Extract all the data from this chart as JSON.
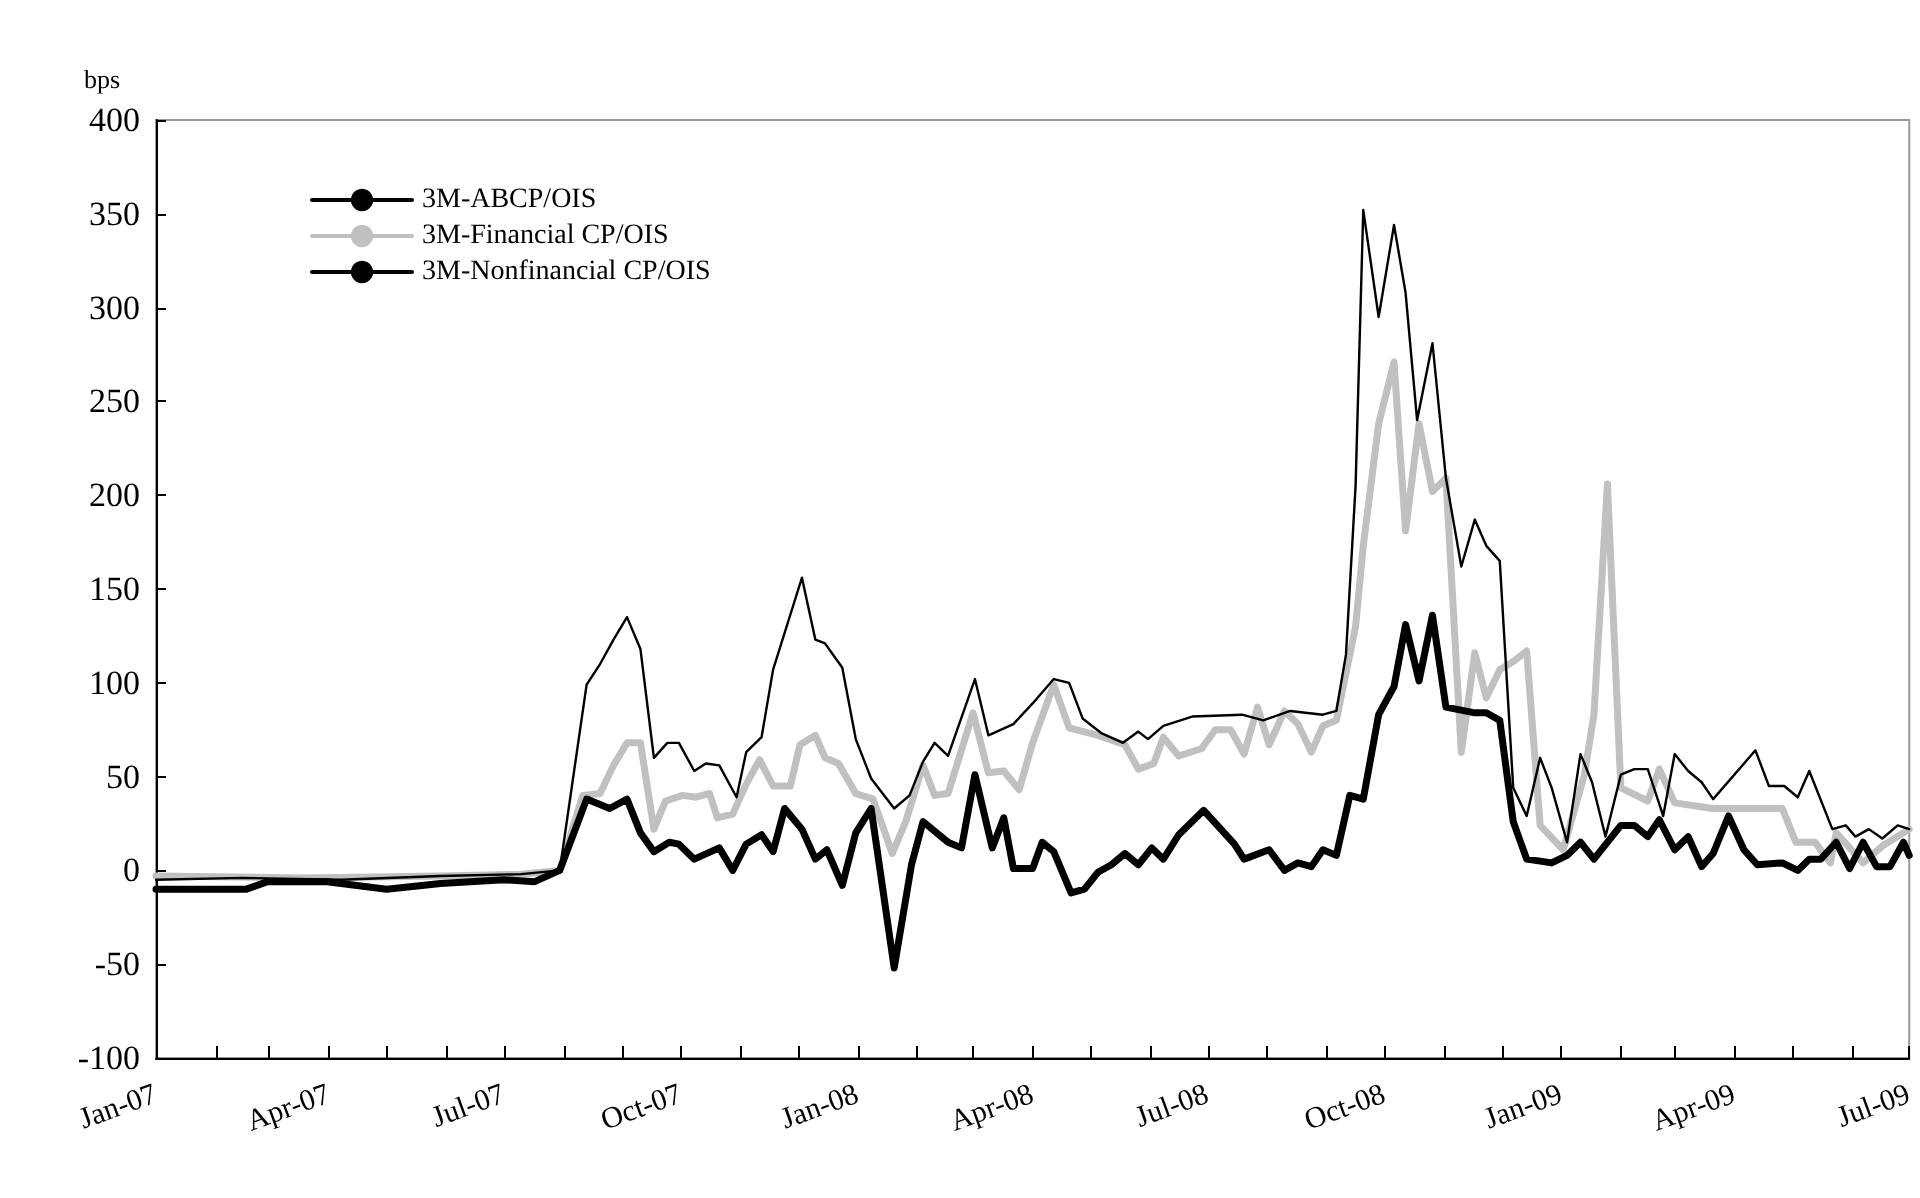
{
  "chart_data": {
    "type": "line",
    "ylabel": "bps",
    "xlim": [
      "2007-01-01",
      "2009-07-01"
    ],
    "ylim": [
      -100,
      400
    ],
    "yticks": [
      -100,
      -50,
      0,
      50,
      100,
      150,
      200,
      250,
      300,
      350,
      400
    ],
    "xticks": [
      {
        "value": "2007-01-01",
        "label": "Jan-07"
      },
      {
        "value": "2007-02-01",
        "label": null
      },
      {
        "value": "2007-03-01",
        "label": null
      },
      {
        "value": "2007-04-01",
        "label": "Apr-07"
      },
      {
        "value": "2007-05-01",
        "label": null
      },
      {
        "value": "2007-06-01",
        "label": null
      },
      {
        "value": "2007-07-01",
        "label": "Jul-07"
      },
      {
        "value": "2007-08-01",
        "label": null
      },
      {
        "value": "2007-09-01",
        "label": null
      },
      {
        "value": "2007-10-01",
        "label": "Oct-07"
      },
      {
        "value": "2007-11-01",
        "label": null
      },
      {
        "value": "2007-12-01",
        "label": null
      },
      {
        "value": "2008-01-01",
        "label": "Jan-08"
      },
      {
        "value": "2008-02-01",
        "label": null
      },
      {
        "value": "2008-03-01",
        "label": null
      },
      {
        "value": "2008-04-01",
        "label": "Apr-08"
      },
      {
        "value": "2008-05-01",
        "label": null
      },
      {
        "value": "2008-06-01",
        "label": null
      },
      {
        "value": "2008-07-01",
        "label": "Jul-08"
      },
      {
        "value": "2008-08-01",
        "label": null
      },
      {
        "value": "2008-09-01",
        "label": null
      },
      {
        "value": "2008-10-01",
        "label": "Oct-08"
      },
      {
        "value": "2008-11-01",
        "label": null
      },
      {
        "value": "2008-12-01",
        "label": null
      },
      {
        "value": "2009-01-01",
        "label": "Jan-09"
      },
      {
        "value": "2009-02-01",
        "label": null
      },
      {
        "value": "2009-03-01",
        "label": null
      },
      {
        "value": "2009-04-01",
        "label": "Apr-09"
      },
      {
        "value": "2009-05-01",
        "label": null
      },
      {
        "value": "2009-06-01",
        "label": null
      },
      {
        "value": "2009-07-01",
        "label": "Jul-09"
      }
    ],
    "grid": false,
    "legend": "top left",
    "marker": "none",
    "line_style": "solid",
    "series": [
      {
        "name": "3M-ABCP/OIS",
        "color": "#000000",
        "x": [
          "2007-01-01",
          "2007-02-15",
          "2007-04-07",
          "2007-05-29",
          "2007-07-10",
          "2007-07-30",
          "2007-08-13",
          "2007-08-20",
          "2007-08-27",
          "2007-09-03",
          "2007-09-10",
          "2007-09-17",
          "2007-09-24",
          "2007-09-30",
          "2007-10-08",
          "2007-10-14",
          "2007-10-21",
          "2007-10-30",
          "2007-11-04",
          "2007-11-12",
          "2007-11-18",
          "2007-12-03",
          "2007-12-10",
          "2007-12-15",
          "2007-12-24",
          "2007-12-31",
          "2008-01-08",
          "2008-01-20",
          "2008-01-28",
          "2008-02-04",
          "2008-02-10",
          "2008-02-17",
          "2008-03-02",
          "2008-03-09",
          "2008-03-22",
          "2008-04-01",
          "2008-04-12",
          "2008-04-20",
          "2008-04-27",
          "2008-05-07",
          "2008-05-18",
          "2008-05-26",
          "2008-05-31",
          "2008-06-08",
          "2008-06-23",
          "2008-07-19",
          "2008-07-30",
          "2008-08-13",
          "2008-08-30",
          "2008-09-06",
          "2008-09-11",
          "2008-09-16",
          "2008-09-20",
          "2008-09-28",
          "2008-10-06",
          "2008-10-12",
          "2008-10-18",
          "2008-10-26",
          "2008-11-02",
          "2008-11-10",
          "2008-11-17",
          "2008-11-23",
          "2008-11-30",
          "2008-12-07",
          "2008-12-14",
          "2008-12-21",
          "2008-12-27",
          "2009-01-04",
          "2009-01-11",
          "2009-01-17",
          "2009-01-24",
          "2009-02-01",
          "2009-02-08",
          "2009-02-15",
          "2009-02-23",
          "2009-03-01",
          "2009-03-08",
          "2009-03-15",
          "2009-03-21",
          "2009-04-12",
          "2009-04-19",
          "2009-04-27",
          "2009-05-04",
          "2009-05-10",
          "2009-05-22",
          "2009-05-29",
          "2009-06-03",
          "2009-06-10",
          "2009-06-17",
          "2009-06-25",
          "2009-07-01"
        ],
        "values": [
          -5,
          -4,
          -5,
          -3,
          -2,
          0,
          99,
          110,
          123,
          135,
          118,
          60,
          68,
          68,
          53,
          57,
          56,
          39,
          63,
          71,
          107,
          156,
          123,
          121,
          108,
          70,
          49,
          33,
          40,
          58,
          68,
          61,
          102,
          72,
          78,
          89,
          102,
          100,
          81,
          73,
          68,
          74,
          70,
          77,
          82,
          83,
          80,
          85,
          83,
          85,
          115,
          205,
          352,
          295,
          344,
          308,
          240,
          281,
          209,
          162,
          187,
          173,
          165,
          44,
          29,
          60,
          44,
          15,
          62,
          47,
          18,
          51,
          54,
          54,
          29,
          62,
          53,
          47,
          38,
          64,
          45,
          45,
          39,
          53,
          22,
          24,
          18,
          22,
          17,
          24,
          22
        ]
      },
      {
        "name": "3M-Financial CP/OIS",
        "color": "#c0c0c0",
        "x": [
          "2007-01-01",
          "2007-03-18",
          "2007-05-29",
          "2007-07-10",
          "2007-07-30",
          "2007-08-11",
          "2007-08-20",
          "2007-08-27",
          "2007-09-03",
          "2007-09-10",
          "2007-09-17",
          "2007-09-23",
          "2007-10-02",
          "2007-10-09",
          "2007-10-16",
          "2007-10-20",
          "2007-10-28",
          "2007-11-04",
          "2007-11-11",
          "2007-11-18",
          "2007-11-27",
          "2007-12-02",
          "2007-12-10",
          "2007-12-15",
          "2007-12-22",
          "2007-12-31",
          "2008-01-09",
          "2008-01-19",
          "2008-01-26",
          "2008-02-04",
          "2008-02-10",
          "2008-02-17",
          "2008-03-01",
          "2008-03-09",
          "2008-03-17",
          "2008-03-25",
          "2008-04-01",
          "2008-04-12",
          "2008-04-20",
          "2008-05-05",
          "2008-05-19",
          "2008-05-26",
          "2008-06-03",
          "2008-06-08",
          "2008-06-16",
          "2008-06-28",
          "2008-07-05",
          "2008-07-13",
          "2008-07-20",
          "2008-07-27",
          "2008-08-02",
          "2008-08-10",
          "2008-08-17",
          "2008-08-24",
          "2008-08-30",
          "2008-09-06",
          "2008-09-16",
          "2008-09-20",
          "2008-09-28",
          "2008-10-06",
          "2008-10-12",
          "2008-10-19",
          "2008-10-26",
          "2008-11-02",
          "2008-11-10",
          "2008-11-17",
          "2008-11-23",
          "2008-11-30",
          "2008-12-08",
          "2008-12-14",
          "2008-12-21",
          "2009-01-02",
          "2009-01-13",
          "2009-01-18",
          "2009-01-25",
          "2009-02-01",
          "2009-02-15",
          "2009-02-21",
          "2009-03-01",
          "2009-03-21",
          "2009-04-26",
          "2009-05-03",
          "2009-05-13",
          "2009-05-21",
          "2009-05-24",
          "2009-06-07",
          "2009-06-17",
          "2009-07-01"
        ],
        "values": [
          -3,
          -4,
          -3,
          -2,
          0,
          40,
          41,
          56,
          68,
          68,
          22,
          37,
          40,
          39,
          41,
          28,
          30,
          46,
          59,
          45,
          45,
          67,
          72,
          60,
          57,
          41,
          38,
          9,
          26,
          56,
          40,
          41,
          84,
          52,
          53,
          43,
          68,
          99,
          76,
          72,
          67,
          54,
          57,
          71,
          61,
          65,
          75,
          75,
          62,
          87,
          67,
          85,
          78,
          63,
          77,
          80,
          130,
          173,
          238,
          271,
          181,
          238,
          202,
          209,
          63,
          116,
          92,
          107,
          112,
          117,
          24,
          11,
          51,
          83,
          206,
          44,
          37,
          54,
          36,
          33,
          33,
          15,
          15,
          4,
          20,
          4,
          13,
          22
        ]
      },
      {
        "name": "3M-Nonfinancial CP/OIS",
        "color": "#000000",
        "x": [
          "2007-01-01",
          "2007-02-17",
          "2007-02-28",
          "2007-03-31",
          "2007-05-01",
          "2007-05-29",
          "2007-07-01",
          "2007-07-17",
          "2007-07-30",
          "2007-08-13",
          "2007-08-25",
          "2007-09-03",
          "2007-09-10",
          "2007-09-17",
          "2007-09-25",
          "2007-09-30",
          "2007-10-08",
          "2007-10-21",
          "2007-10-28",
          "2007-11-04",
          "2007-11-12",
          "2007-11-18",
          "2007-11-24",
          "2007-12-03",
          "2007-12-10",
          "2007-12-16",
          "2007-12-24",
          "2007-12-31",
          "2008-01-08",
          "2008-01-20",
          "2008-01-29",
          "2008-02-04",
          "2008-02-17",
          "2008-02-24",
          "2008-03-02",
          "2008-03-11",
          "2008-03-17",
          "2008-03-22",
          "2008-04-01",
          "2008-04-06",
          "2008-04-12",
          "2008-04-21",
          "2008-04-28",
          "2008-05-05",
          "2008-05-12",
          "2008-05-19",
          "2008-05-26",
          "2008-06-02",
          "2008-06-08",
          "2008-06-16",
          "2008-06-29",
          "2008-07-15",
          "2008-07-20",
          "2008-08-02",
          "2008-08-10",
          "2008-08-17",
          "2008-08-24",
          "2008-08-30",
          "2008-09-06",
          "2008-09-13",
          "2008-09-20",
          "2008-09-28",
          "2008-10-06",
          "2008-10-12",
          "2008-10-19",
          "2008-10-26",
          "2008-11-02",
          "2008-11-17",
          "2008-11-23",
          "2008-11-30",
          "2008-12-07",
          "2008-12-14",
          "2008-12-27",
          "2009-01-04",
          "2009-01-11",
          "2009-01-18",
          "2009-02-01",
          "2009-02-08",
          "2009-02-15",
          "2009-02-21",
          "2009-03-01",
          "2009-03-08",
          "2009-03-15",
          "2009-03-21",
          "2009-03-29",
          "2009-04-06",
          "2009-04-13",
          "2009-04-26",
          "2009-05-04",
          "2009-05-10",
          "2009-05-16",
          "2009-05-24",
          "2009-05-31",
          "2009-06-07",
          "2009-06-14",
          "2009-06-21",
          "2009-06-28",
          "2009-07-01"
        ],
        "values": [
          -10,
          -10,
          -6,
          -6,
          -10,
          -7,
          -5,
          -6,
          0,
          38,
          33,
          38,
          20,
          10,
          15,
          14,
          6,
          12,
          0,
          14,
          19,
          10,
          33,
          22,
          6,
          11,
          -8,
          20,
          33,
          -52,
          3,
          26,
          15,
          12,
          51,
          12,
          28,
          1,
          1,
          15,
          10,
          -12,
          -10,
          -1,
          3,
          9,
          3,
          12,
          6,
          19,
          32,
          14,
          6,
          11,
          0,
          4,
          2,
          11,
          8,
          40,
          38,
          83,
          98,
          131,
          101,
          136,
          87,
          84,
          84,
          80,
          26,
          6,
          4,
          8,
          15,
          6,
          24,
          24,
          18,
          27,
          11,
          18,
          2,
          9,
          29,
          11,
          3,
          4,
          0,
          6,
          6,
          15,
          1,
          15,
          2,
          2,
          15,
          8
        ]
      }
    ]
  }
}
